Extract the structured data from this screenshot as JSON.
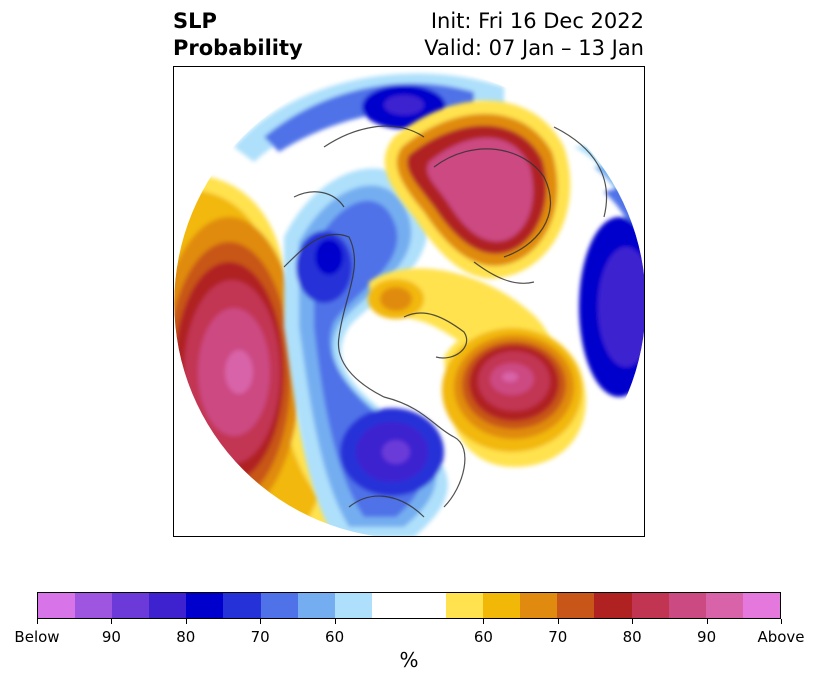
{
  "title": {
    "left_line1": "SLP",
    "left_line2": "Probability",
    "init": "Init: Fri 16 Dec 2022",
    "valid": "Valid: 07 Jan – 13 Jan"
  },
  "map": {
    "projection": "north-polar-stereographic",
    "circular_domain": true,
    "coastlines": true,
    "borders": true
  },
  "colorbar": {
    "unit_label": "%",
    "segments": [
      "#d774e8",
      "#9e55e0",
      "#6b3ad8",
      "#3e22d0",
      "#0000cc",
      "#2532d8",
      "#4f72e8",
      "#74aef0",
      "#aee0fb",
      "#ffffff",
      "#ffe24d",
      "#f2b807",
      "#e08b0f",
      "#c85618",
      "#b02222",
      "#c23552",
      "#cc4a82",
      "#d863a8",
      "#e578dc"
    ],
    "tick_labels": [
      "Below",
      "90",
      "80",
      "70",
      "60",
      "60",
      "70",
      "80",
      "90",
      "Above"
    ]
  }
}
